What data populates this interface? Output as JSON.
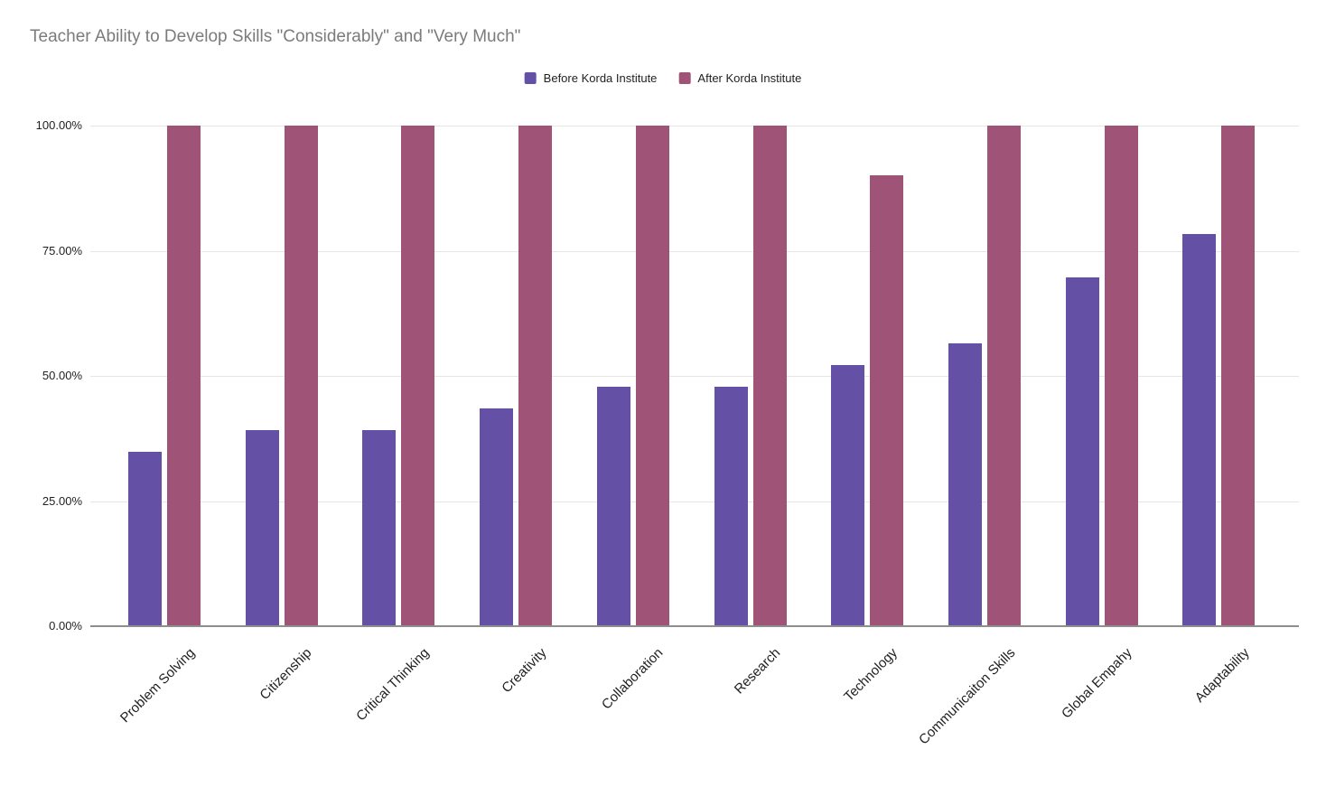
{
  "title": "Teacher Ability to Develop Skills \"Considerably\" and \"Very Much\"",
  "legend": [
    {
      "label": "Before Korda Institute",
      "color": "#6451a5"
    },
    {
      "label": "After Korda Institute",
      "color": "#9e5377"
    }
  ],
  "colors": {
    "title_text": "#7b7b7b",
    "axis_text": "#222222",
    "gridline": "#e6e6e6",
    "axis_baseline": "#8e8e8e",
    "series_before": "#6451a5",
    "series_after": "#9e5377",
    "background": "#ffffff"
  },
  "y_axis": {
    "tick_values": [
      100,
      75,
      50,
      25,
      0
    ],
    "tick_labels": [
      "100.00%",
      "75.00%",
      "50.00%",
      "25.00%",
      "0.00%"
    ]
  },
  "chart_data": {
    "type": "bar",
    "title": "Teacher Ability to Develop Skills \"Considerably\" and \"Very Much\"",
    "categories": [
      "Problem Solving",
      "Citizenship",
      "Critical Thinking",
      "Creativity",
      "Collaboration",
      "Research",
      "Technology",
      "Communicaiton Skills",
      "Global Empahy",
      "Adaptability"
    ],
    "series": [
      {
        "name": "Before Korda Institute",
        "color": "#6451a5",
        "values": [
          34.8,
          39.1,
          39.1,
          43.5,
          47.8,
          47.8,
          52.2,
          56.5,
          69.6,
          78.3
        ]
      },
      {
        "name": "After Korda Institute",
        "color": "#9e5377",
        "values": [
          100,
          100,
          100,
          100,
          100,
          100,
          90,
          100,
          100,
          100
        ]
      }
    ],
    "xlabel": "",
    "ylabel": "",
    "ylim": [
      0,
      100
    ],
    "y_tick_format": "percent_2dp",
    "grid": true,
    "legend_position": "top",
    "bar_orientation": "vertical"
  }
}
